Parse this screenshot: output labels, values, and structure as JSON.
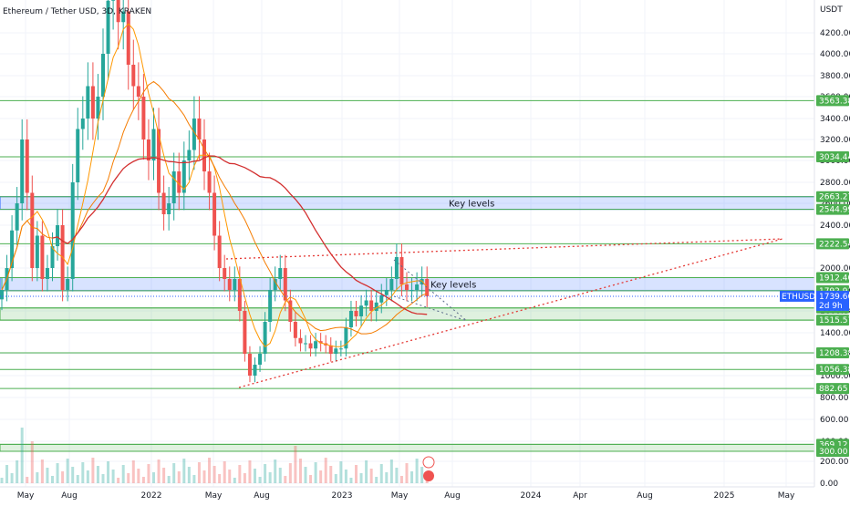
{
  "header": {
    "title": "Ethereum / Tether USD, 3D, KRAKEN"
  },
  "chart_data": {
    "type": "candlestick",
    "title": "Ethereum / Tether USD, 3D, KRAKEN",
    "y_unit_label": "USDT",
    "y_scale": "log",
    "ylim": [
      0,
      4600
    ],
    "y_ticks": [
      4200,
      4000,
      3800,
      3600,
      3400,
      3200,
      3000,
      2800,
      2600,
      2400,
      2200,
      2000,
      1800,
      1600,
      1400,
      1200,
      1000,
      800,
      600,
      400,
      200,
      0
    ],
    "y_tick_labels": [
      "4200.00",
      "4000.00",
      "3800.00",
      "3600.00",
      "3400.00",
      "3200.00",
      "3000.00",
      "2800.00",
      "2600.00",
      "2400.00",
      "2200.00",
      "2000.00",
      "1800.00",
      "1600.00",
      "1400.00",
      "1200.00",
      "1000.00",
      "800.00",
      "600.00",
      "400.00",
      "200.00",
      "0.00"
    ],
    "x_tick_labels": [
      "May",
      "Aug",
      "2022",
      "May",
      "Aug",
      "2023",
      "May",
      "Aug",
      "2024",
      "Apr",
      "Aug",
      "2025",
      "May"
    ],
    "horizontal_levels": [
      3563.38,
      3034.44,
      2663.27,
      2544.99,
      2222.54,
      1912.4,
      1792.91,
      1628.0,
      1515.57,
      1208.38,
      1056.38,
      882.65,
      369.12,
      300.0
    ],
    "level_labels": [
      "3563.38",
      "3034.44",
      "2663.27",
      "2544.99",
      "2222.54",
      "1912.40",
      "1792.91",
      "1628.00",
      "1515.57",
      "1208.38",
      "1056.38",
      "882.65",
      "369.12",
      "300.00"
    ],
    "zones": [
      {
        "label": "Key levels",
        "from": 2544.99,
        "to": 2663.27,
        "color": "#2962ff"
      },
      {
        "label": "Key levels",
        "from": 1792.91,
        "to": 1912.4,
        "color": "#2962ff"
      },
      {
        "label": "",
        "from": 1515.57,
        "to": 1628.0,
        "color": "#4caf50"
      },
      {
        "label": "",
        "from": 300.0,
        "to": 369.12,
        "color": "#4caf50"
      }
    ],
    "current_price": {
      "symbol": "ETHUSDT",
      "value": "1739.66",
      "countdown": "2d 9h"
    },
    "candles_close": [
      1800,
      2000,
      2350,
      2600,
      3200,
      2700,
      2000,
      2300,
      1900,
      2000,
      2200,
      2400,
      1800,
      1900,
      2800,
      3300,
      3400,
      3700,
      3400,
      3600,
      4000,
      4500,
      4600,
      4300,
      4400,
      3900,
      3700,
      3600,
      3200,
      3000,
      3300,
      2700,
      2500,
      2600,
      2900,
      2700,
      3000,
      3100,
      3400,
      3200,
      2900,
      2700,
      2300,
      2000,
      1900,
      1800,
      1900,
      1600,
      1200,
      1000,
      1100,
      1200,
      1500,
      1800,
      1900,
      2000,
      1700,
      1500,
      1350,
      1300,
      1300,
      1250,
      1320,
      1300,
      1280,
      1200,
      1250,
      1250,
      1450,
      1600,
      1550,
      1650,
      1700,
      1600,
      1680,
      1750,
      1800,
      1900,
      2100,
      1850,
      1800,
      1800,
      1850,
      1900,
      1740
    ],
    "colors": {
      "up": "#26a69a",
      "down": "#ef5350",
      "ma_fast": "#ff9800",
      "ma_slow": "#f57c00",
      "ma_long": "#d32f2f",
      "level_line": "#4caf50",
      "price_tag": "#2962ff",
      "trendline": "#e53935"
    }
  }
}
